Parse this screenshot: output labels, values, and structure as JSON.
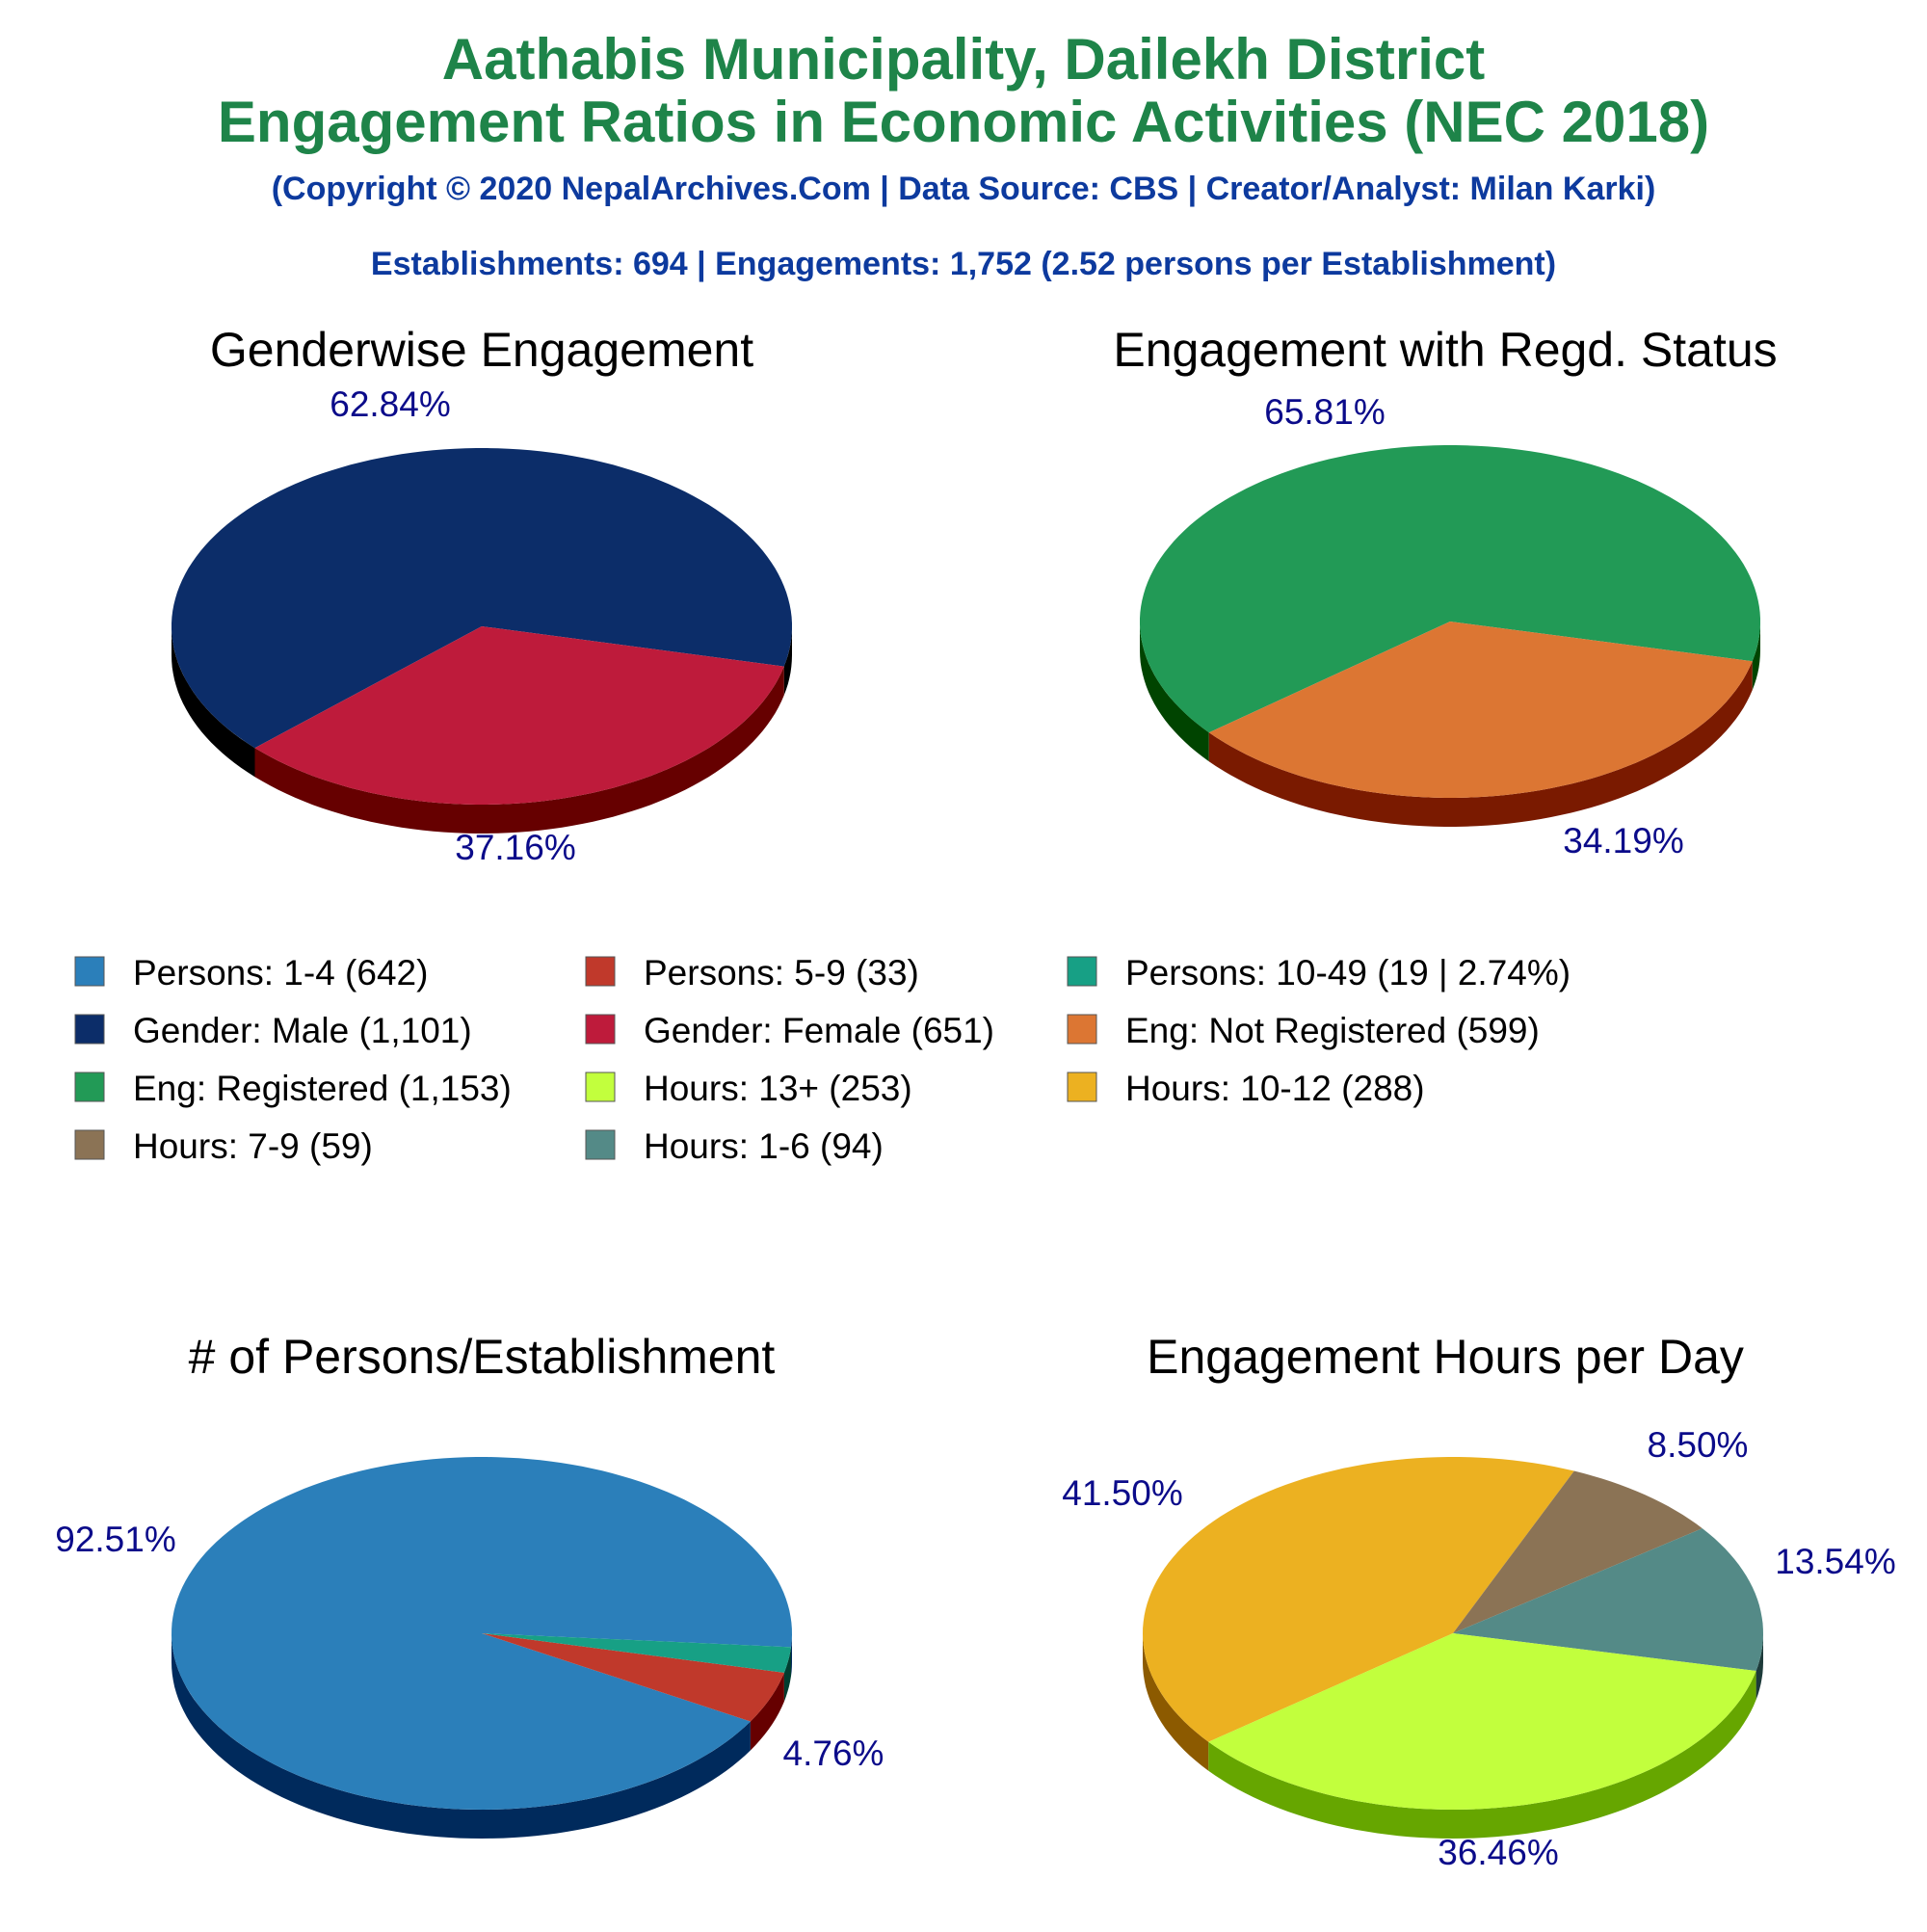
{
  "header": {
    "title_line1": "Aathabis Municipality, Dailekh District",
    "title_line2": "Engagement Ratios in Economic Activities (NEC 2018)",
    "copyright": "(Copyright © 2020 NepalArchives.Com | Data Source: CBS | Creator/Analyst: Milan Karki)",
    "summary": "Establishments: 694 | Engagements: 1,752 (2.52 persons per Establishment)"
  },
  "legend": {
    "items": [
      {
        "label": "Persons: 1-4 (642)",
        "color": "#2b7fba"
      },
      {
        "label": "Persons: 5-9 (33)",
        "color": "#c0392b"
      },
      {
        "label": "Persons: 10-49 (19 | 2.74%)",
        "color": "#17a085"
      },
      {
        "label": "Gender: Male (1,101)",
        "color": "#0c2d69"
      },
      {
        "label": "Gender: Female (651)",
        "color": "#be1b3b"
      },
      {
        "label": "Eng: Not Registered (599)",
        "color": "#dc7633"
      },
      {
        "label": "Eng: Registered (1,153)",
        "color": "#229a56"
      },
      {
        "label": "Hours: 13+ (253)",
        "color": "#c2ff3d"
      },
      {
        "label": "Hours: 10-12 (288)",
        "color": "#ecb121"
      },
      {
        "label": "Hours: 7-9 (59)",
        "color": "#8b7355"
      },
      {
        "label": "Hours: 1-6 (94)",
        "color": "#548a87"
      }
    ]
  },
  "chart_data": [
    {
      "type": "pie",
      "title": "Genderwise Engagement",
      "slices": [
        {
          "name": "Gender: Male",
          "value": 1101,
          "percent": 62.84,
          "label": "62.84%",
          "color": "#0c2d69",
          "side": "#000000"
        },
        {
          "name": "Gender: Female",
          "value": 651,
          "percent": 37.16,
          "label": "37.16%",
          "color": "#be1b3b",
          "side": "#660000"
        }
      ]
    },
    {
      "type": "pie",
      "title": "Engagement with Regd. Status",
      "slices": [
        {
          "name": "Eng: Registered",
          "value": 1153,
          "percent": 65.81,
          "label": "65.81%",
          "color": "#229a56",
          "side": "#004400"
        },
        {
          "name": "Eng: Not Registered",
          "value": 599,
          "percent": 34.19,
          "label": "34.19%",
          "color": "#dc7633",
          "side": "#7a1a00"
        }
      ]
    },
    {
      "type": "pie",
      "title": "# of Persons/Establishment",
      "slices": [
        {
          "name": "Persons: 1-4",
          "value": 642,
          "percent": 92.51,
          "label": "92.51%",
          "color": "#2b7fba",
          "side": "#002a5c"
        },
        {
          "name": "Persons: 5-9",
          "value": 33,
          "percent": 4.76,
          "label": "4.76%",
          "color": "#c0392b",
          "side": "#660000"
        },
        {
          "name": "Persons: 10-49",
          "value": 19,
          "percent": 2.74,
          "label": "",
          "color": "#17a085",
          "side": "#003d30"
        }
      ]
    },
    {
      "type": "pie",
      "title": "Engagement Hours per Day",
      "slices": [
        {
          "name": "Hours: 10-12",
          "value": 288,
          "percent": 41.5,
          "label": "41.50%",
          "color": "#ecb121",
          "side": "#8c5a00"
        },
        {
          "name": "Hours: 7-9",
          "value": 59,
          "percent": 8.5,
          "label": "8.50%",
          "color": "#8b7355",
          "side": "#3d2a1a"
        },
        {
          "name": "Hours: 1-6",
          "value": 94,
          "percent": 13.54,
          "label": "13.54%",
          "color": "#548a87",
          "side": "#1d3b3a"
        },
        {
          "name": "Hours: 13+",
          "value": 253,
          "percent": 36.46,
          "label": "36.46%",
          "color": "#c2ff3d",
          "side": "#66a600"
        }
      ]
    }
  ]
}
